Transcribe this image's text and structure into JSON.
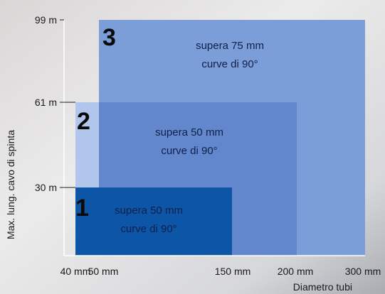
{
  "y_axis": {
    "title": "Max. lung. cavo di spinta",
    "ticks": [
      "99 m",
      "61 m",
      "30 m"
    ]
  },
  "x_axis": {
    "title": "Diametro tubi",
    "ticks": [
      "40 mm",
      "50 mm",
      "150 mm",
      "200 mm",
      "300 mm"
    ]
  },
  "regions": [
    {
      "number": "3",
      "lines": [
        "supera 75 mm",
        "curve di 90°"
      ]
    },
    {
      "number": "2",
      "lines": [
        "supera 50 mm",
        "curve di 90°"
      ]
    },
    {
      "number": "1",
      "lines": [
        "supera 50 mm",
        "curve di 90°"
      ]
    }
  ]
}
